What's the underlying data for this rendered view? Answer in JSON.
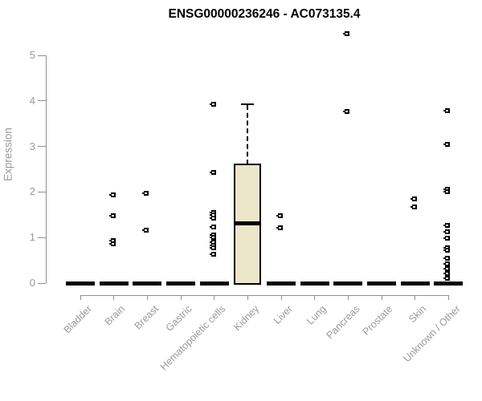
{
  "chart_data": {
    "type": "boxplot",
    "title": "ENSG00000236246 - AC073135.4",
    "ylabel": "Expression",
    "xlabel": "",
    "y_ticks": [
      0,
      1,
      2,
      3,
      4,
      5
    ],
    "ylim": [
      0,
      5.6
    ],
    "grid": false,
    "legend": "none",
    "categories": [
      "Bladder",
      "Brain",
      "Breast",
      "Gastric",
      "Hematopoietic cells",
      "Kidney",
      "Liver",
      "Lung",
      "Pancreas",
      "Prostate",
      "Skin",
      "Unknown / Other"
    ],
    "series": [
      {
        "category": "Bladder",
        "median": 0,
        "box": null,
        "outliers": []
      },
      {
        "category": "Brain",
        "median": 0,
        "box": null,
        "outliers": [
          1.93,
          1.48,
          0.93,
          0.86
        ]
      },
      {
        "category": "Breast",
        "median": 0,
        "box": null,
        "outliers": [
          1.98,
          1.17
        ]
      },
      {
        "category": "Gastric",
        "median": 0,
        "box": null,
        "outliers": []
      },
      {
        "category": "Hematopoietic cells",
        "median": 0,
        "box": null,
        "outliers": [
          3.93,
          2.43,
          1.55,
          1.49,
          1.42,
          1.23,
          1.06,
          1.01,
          0.9,
          0.82,
          0.78,
          0.64
        ]
      },
      {
        "category": "Kidney",
        "median": 1.31,
        "box": {
          "q1": 0,
          "median": 1.31,
          "q3": 2.59,
          "whisker_low": 0,
          "whisker_high": 3.93
        },
        "outliers": []
      },
      {
        "category": "Liver",
        "median": 0,
        "box": null,
        "outliers": [
          1.48,
          1.22
        ]
      },
      {
        "category": "Lung",
        "median": 0,
        "box": null,
        "outliers": []
      },
      {
        "category": "Pancreas",
        "median": 0,
        "box": null,
        "outliers": [
          5.48,
          3.77
        ]
      },
      {
        "category": "Prostate",
        "median": 0,
        "box": null,
        "outliers": []
      },
      {
        "category": "Skin",
        "median": 0,
        "box": null,
        "outliers": [
          1.85,
          1.67
        ]
      },
      {
        "category": "Unknown / Other",
        "median": 0,
        "box": null,
        "outliers": [
          3.78,
          3.05,
          2.06,
          2.01,
          1.27,
          1.13,
          0.99,
          0.77,
          0.73,
          0.54,
          0.42,
          0.32,
          0.21,
          0.11
        ]
      }
    ],
    "colors": {
      "box_fill": "#ece6ca",
      "box_border": "#000000",
      "median": "#000000",
      "marker": "#000000",
      "axis": "#8f8f8f",
      "tick_label": "#9a9a9a",
      "title": "#000000",
      "background": "#ffffff"
    }
  }
}
